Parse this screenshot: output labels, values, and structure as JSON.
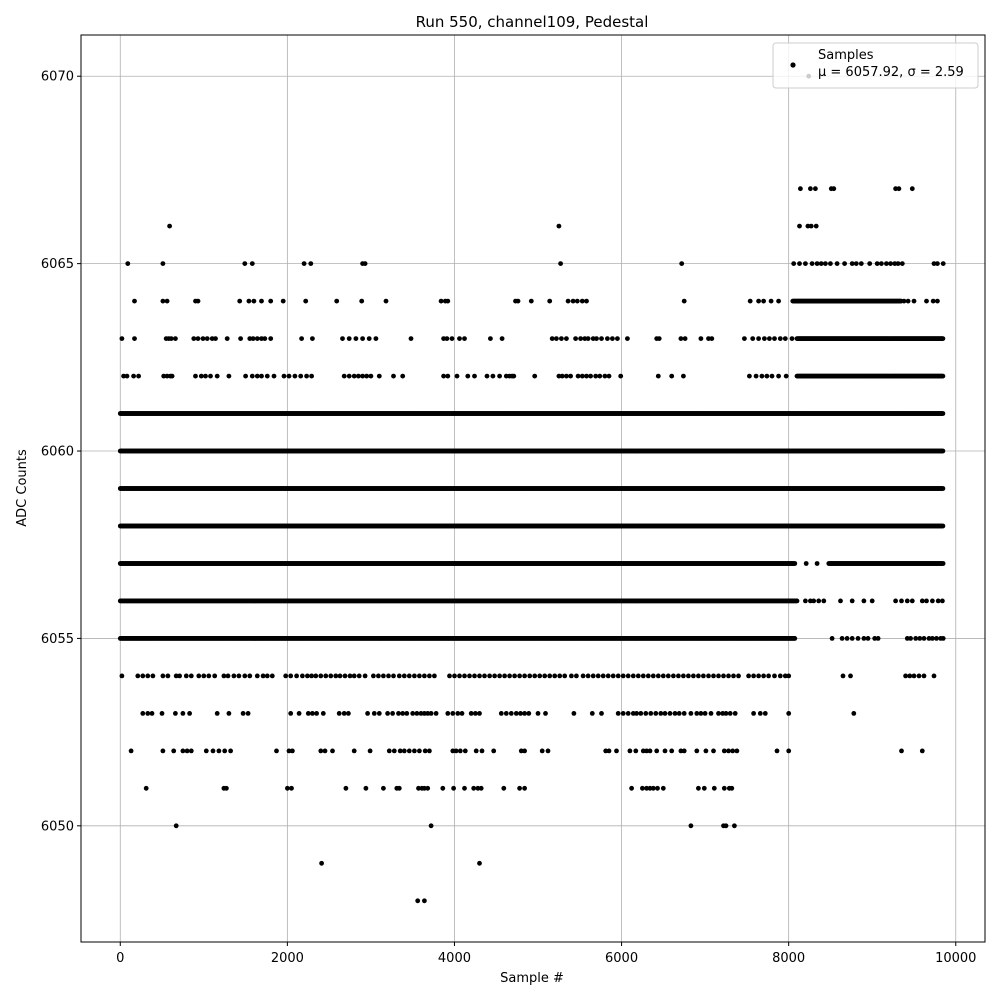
{
  "chart_data": {
    "type": "scatter",
    "title": "Run 550, channel109, Pedestal",
    "xlabel": "Sample #",
    "ylabel": "ADC Counts",
    "xlim": [
      -470,
      10350
    ],
    "ylim": [
      6046.9,
      6071.1
    ],
    "xticks": [
      0,
      2000,
      4000,
      6000,
      8000,
      10000
    ],
    "yticks": [
      6050,
      6055,
      6060,
      6065,
      6070
    ],
    "grid": true,
    "legend": {
      "placement": "upper right",
      "series_label": "Samples",
      "stats_label": "μ = 6057.92, σ = 2.59"
    },
    "marker_color": "#000000",
    "series": [
      {
        "name": "Samples",
        "note_levels": "Each level lists [start,end] sample ranges where points are densely present, plus isolated sparse points.",
        "levels": [
          {
            "y": 6048,
            "points": [
              3560,
              3640
            ]
          },
          {
            "y": 6049,
            "points": [
              2410,
              4300
            ]
          },
          {
            "y": 6050,
            "points": [
              670,
              3720,
              6830,
              7220,
              7250,
              7350
            ]
          },
          {
            "y": 6051,
            "points": [
              310,
              1240,
              1270,
              2000,
              2050,
              2700,
              2940,
              3150,
              3310,
              3340,
              3570,
              3610,
              3640,
              3680,
              3860,
              3990,
              4120,
              4230,
              4280,
              4320,
              4590,
              4780,
              4840,
              6120,
              6250,
              6300,
              6340,
              6380,
              6430,
              6500,
              6920,
              6990,
              7110,
              7230,
              7290,
              7320
            ]
          },
          {
            "y": 6052,
            "points": [
              130,
              510,
              640,
              750,
              800,
              850,
              1030,
              1110,
              1180,
              1250,
              1320,
              1870,
              2020,
              2060,
              2400,
              2450,
              2540,
              2800,
              2990,
              3220,
              3280,
              3350,
              3400,
              3460,
              3520,
              3580,
              3650,
              3700,
              3980,
              4020,
              4070,
              4130,
              4260,
              4330,
              4470,
              4800,
              4840,
              5050,
              5120,
              5810,
              5850,
              5940,
              6100,
              6170,
              6260,
              6300,
              6340,
              6420,
              6520,
              6600,
              6710,
              6750,
              6900,
              7010,
              7100,
              7230,
              7280,
              7330,
              7380,
              7860,
              8000,
              9350,
              9600
            ]
          },
          {
            "y": 6053,
            "points": [
              270,
              330,
              380,
              500,
              660,
              750,
              830,
              1160,
              1300,
              1470,
              1530,
              2040,
              2140,
              2250,
              2300,
              2350,
              2430,
              2620,
              2680,
              2730,
              2960,
              3040,
              3100,
              3200,
              3260,
              3330,
              3380,
              3430,
              3500,
              3550,
              3600,
              3640,
              3680,
              3720,
              3780,
              3920,
              3980,
              4040,
              4090,
              4200,
              4250,
              4300,
              4560,
              4620,
              4680,
              4740,
              4790,
              4840,
              4890,
              5000,
              5090,
              5430,
              5650,
              5760,
              5960,
              6020,
              6080,
              6140,
              6180,
              6230,
              6290,
              6350,
              6410,
              6470,
              6520,
              6580,
              6640,
              6690,
              6750,
              6830,
              6900,
              6950,
              7000,
              7070,
              7160,
              7210,
              7250,
              7300,
              7360,
              7580,
              7660,
              7720,
              8000,
              8780
            ]
          },
          {
            "y": 6054,
            "points": [
              20,
              210,
              270,
              330,
              390,
              510,
              570,
              670,
              710,
              790,
              850,
              940,
              1000,
              1060,
              1130,
              1240,
              1290,
              1360,
              1420,
              1490,
              1550,
              1640,
              1710,
              1760,
              1820,
              1980,
              2040,
              2110,
              2180,
              2240,
              2290,
              2340,
              2400,
              2460,
              2520,
              2580,
              2630,
              2690,
              2750,
              2800,
              2860,
              2930,
              3030,
              3090,
              3150,
              3210,
              3270,
              3340,
              3400,
              3460,
              3520,
              3580,
              3640,
              3700,
              3760,
              3940,
              4000,
              4060,
              4120,
              4180,
              4240,
              4300,
              4360,
              4420,
              4480,
              4540,
              4600,
              4660,
              4720,
              4780,
              4840,
              4900,
              4960,
              5020,
              5080,
              5140,
              5200,
              5260,
              5320,
              5400,
              5460,
              5540,
              5600,
              5660,
              5720,
              5780,
              5840,
              5900,
              5960,
              6020,
              6080,
              6140,
              6200,
              6260,
              6320,
              6380,
              6440,
              6500,
              6560,
              6620,
              6680,
              6740,
              6800,
              6860,
              6920,
              6980,
              7040,
              7100,
              7160,
              7220,
              7280,
              7340,
              7400,
              7520,
              7580,
              7640,
              7700,
              7760,
              7830,
              7900,
              7960,
              8000,
              8650,
              8740,
              9400,
              9450,
              9500,
              9560,
              9620,
              9740
            ]
          },
          {
            "y": 6055,
            "dense_ranges": [
              [
                0,
                8080
              ]
            ],
            "points": [
              8520,
              8640,
              8700,
              8760,
              8830,
              8900,
              8950,
              9030,
              9070,
              9420,
              9460,
              9520,
              9570,
              9620,
              9680,
              9720,
              9770,
              9820,
              9850
            ]
          },
          {
            "y": 6056,
            "dense_ranges": [
              [
                0,
                8100
              ]
            ],
            "points": [
              8200,
              8260,
              8300,
              8360,
              8420,
              8620,
              8760,
              8900,
              9000,
              9280,
              9350,
              9420,
              9480,
              9600,
              9650,
              9720,
              9790,
              9840
            ]
          },
          {
            "y": 6057,
            "dense_ranges": [
              [
                0,
                8080
              ],
              [
                8480,
                9850
              ]
            ],
            "points": [
              8210,
              8340
            ]
          },
          {
            "y": 6058,
            "dense_ranges": [
              [
                0,
                9850
              ]
            ],
            "points": []
          },
          {
            "y": 6059,
            "dense_ranges": [
              [
                0,
                9850
              ]
            ],
            "points": []
          },
          {
            "y": 6060,
            "dense_ranges": [
              [
                0,
                9850
              ]
            ],
            "points": []
          },
          {
            "y": 6061,
            "dense_ranges": [
              [
                0,
                9850
              ]
            ],
            "points": []
          },
          {
            "y": 6062,
            "dense_ranges": [
              [
                8100,
                9850
              ]
            ],
            "points": [
              40,
              80,
              160,
              220,
              520,
              560,
              600,
              620,
              900,
              970,
              1020,
              1080,
              1160,
              1300,
              1500,
              1580,
              1640,
              1690,
              1760,
              1840,
              1960,
              2020,
              2090,
              2160,
              2230,
              2290,
              2680,
              2740,
              2800,
              2850,
              2900,
              2950,
              3000,
              3100,
              3270,
              3380,
              3870,
              3920,
              4030,
              4160,
              4240,
              4390,
              4460,
              4540,
              4620,
              4660,
              4690,
              4710,
              4960,
              5250,
              5290,
              5340,
              5390,
              5480,
              5530,
              5580,
              5630,
              5690,
              5740,
              5800,
              5850,
              5990,
              6440,
              6600,
              6740,
              7530,
              7610,
              7680,
              7740,
              7800,
              7880,
              7970
            ]
          },
          {
            "y": 6063,
            "dense_ranges": [
              [
                8100,
                9850
              ]
            ],
            "points": [
              20,
              170,
              550,
              580,
              610,
              660,
              880,
              930,
              990,
              1040,
              1100,
              1140,
              1280,
              1440,
              1550,
              1590,
              1640,
              1690,
              1730,
              1800,
              2170,
              2300,
              2660,
              2740,
              2820,
              2900,
              2980,
              3060,
              3480,
              3870,
              3910,
              3970,
              4060,
              4120,
              4430,
              4570,
              5170,
              5220,
              5280,
              5340,
              5450,
              5510,
              5560,
              5600,
              5660,
              5700,
              5760,
              5830,
              5890,
              5950,
              6070,
              6420,
              6450,
              6710,
              6760,
              6950,
              7040,
              7080,
              7470,
              7570,
              7640,
              7710,
              7770,
              7830,
              7900,
              7960,
              8040
            ]
          },
          {
            "y": 6064,
            "dense_ranges": [
              [
                8050,
                9350
              ]
            ],
            "points": [
              170,
              510,
              560,
              900,
              930,
              1430,
              1540,
              1600,
              1690,
              1800,
              1950,
              2220,
              2590,
              2890,
              3180,
              3840,
              3890,
              3920,
              4730,
              4760,
              4920,
              5140,
              5360,
              5420,
              5470,
              5530,
              5580,
              6750,
              7540,
              7640,
              7700,
              7790,
              7880,
              9380,
              9430,
              9500,
              9650,
              9730,
              9780
            ]
          },
          {
            "y": 6065,
            "points": [
              90,
              510,
              1490,
              1580,
              2200,
              2280,
              2900,
              2930,
              5270,
              6720,
              8060,
              8130,
              8200,
              8280,
              8340,
              8390,
              8440,
              8500,
              8580,
              8670,
              8760,
              8810,
              8870,
              8970,
              9060,
              9110,
              9170,
              9220,
              9270,
              9310,
              9360,
              9740,
              9780,
              9850
            ]
          },
          {
            "y": 6066,
            "points": [
              590,
              5250,
              8130,
              8230,
              8270,
              8330
            ]
          },
          {
            "y": 6067,
            "points": [
              8140,
              8260,
              8320,
              8510,
              8540,
              9280,
              9320,
              9480
            ]
          },
          {
            "y": 6070,
            "points": [
              8240
            ]
          }
        ]
      }
    ]
  }
}
